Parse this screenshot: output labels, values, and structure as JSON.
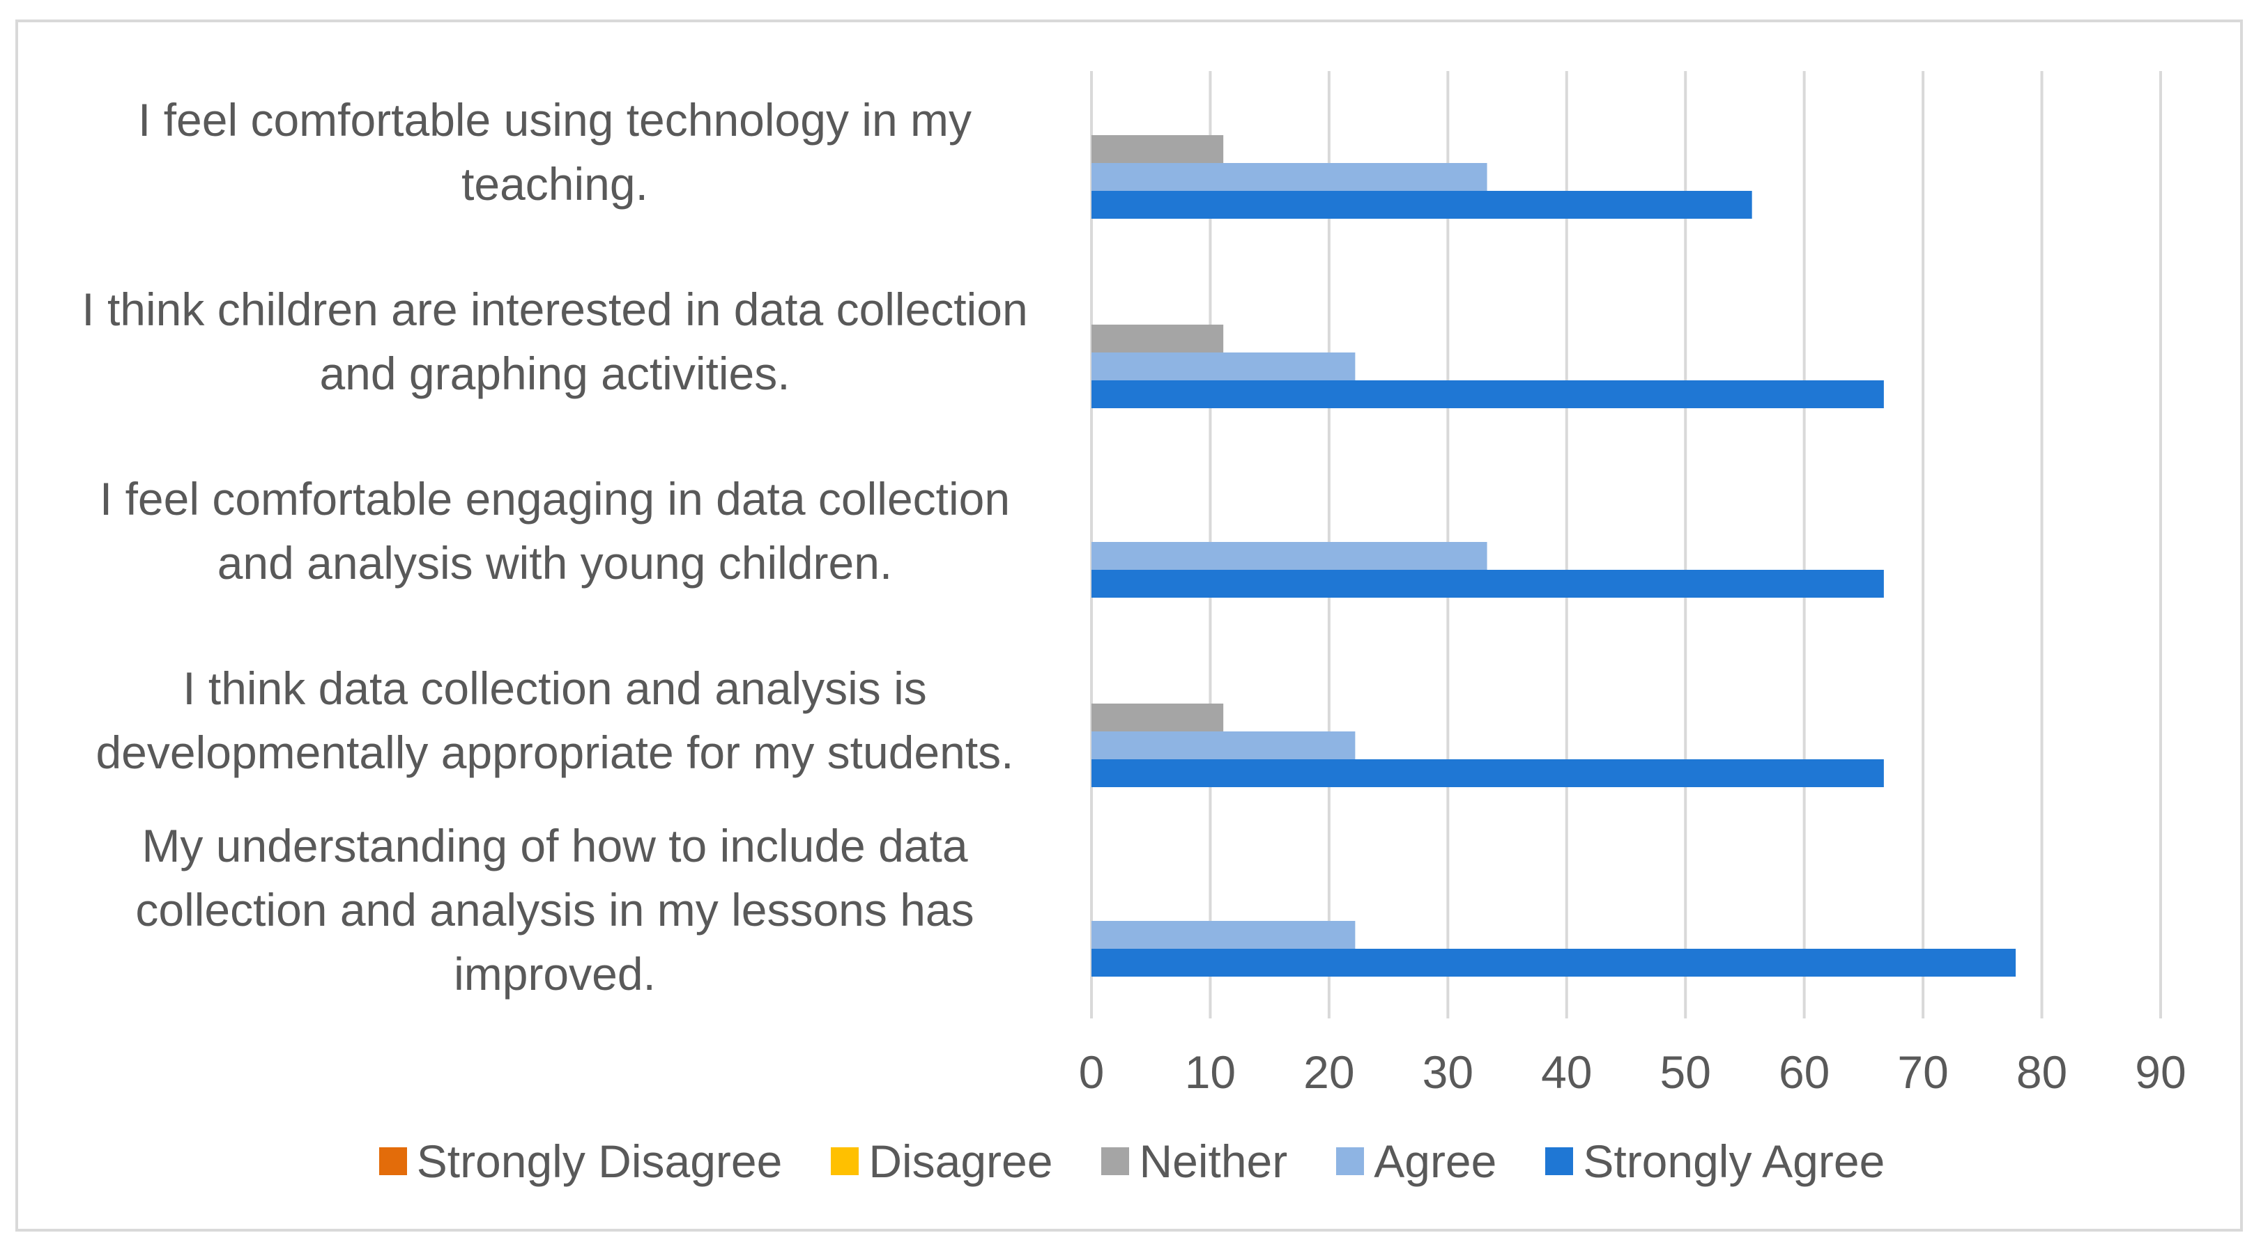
{
  "chart_data": {
    "type": "bar",
    "orientation": "horizontal",
    "title": "",
    "xlabel": "",
    "ylabel": "",
    "xlim": [
      0,
      90
    ],
    "x_ticks": [
      "0",
      "10",
      "20",
      "30",
      "40",
      "50",
      "60",
      "70",
      "80",
      "90"
    ],
    "grid": true,
    "legend_position": "bottom",
    "categories": [
      "I feel comfortable using technology in my teaching.",
      "I think children are interested in data collection and graphing activities.",
      "I feel comfortable engaging in data collection and analysis with young children.",
      "I think data collection and analysis is developmentally appropriate for my students.",
      "My understanding of how to include data collection and analysis in my lessons has improved."
    ],
    "category_lines": [
      [
        "I feel comfortable using technology in my",
        "teaching."
      ],
      [
        "I think children are interested in data collection",
        "and graphing activities."
      ],
      [
        "I feel comfortable engaging in data collection",
        "and analysis with young children."
      ],
      [
        "I think data collection and analysis is",
        "developmentally appropriate for my students."
      ],
      [
        "My understanding of how to include data",
        "collection and analysis in my lessons has",
        "improved."
      ]
    ],
    "series": [
      {
        "name": "Strongly Disagree",
        "color": "#e36c0a",
        "values": [
          0,
          0,
          0,
          0,
          0
        ]
      },
      {
        "name": "Disagree",
        "color": "#ffc000",
        "values": [
          0,
          0,
          0,
          0,
          0
        ]
      },
      {
        "name": "Neither",
        "color": "#a5a5a5",
        "values": [
          11.1,
          11.1,
          0,
          11.1,
          0
        ]
      },
      {
        "name": "Agree",
        "color": "#8eb4e3",
        "values": [
          33.3,
          22.2,
          33.3,
          22.2,
          22.2
        ]
      },
      {
        "name": "Strongly Agree",
        "color": "#1f77d4",
        "values": [
          55.6,
          66.7,
          66.7,
          66.7,
          77.8
        ]
      }
    ]
  }
}
